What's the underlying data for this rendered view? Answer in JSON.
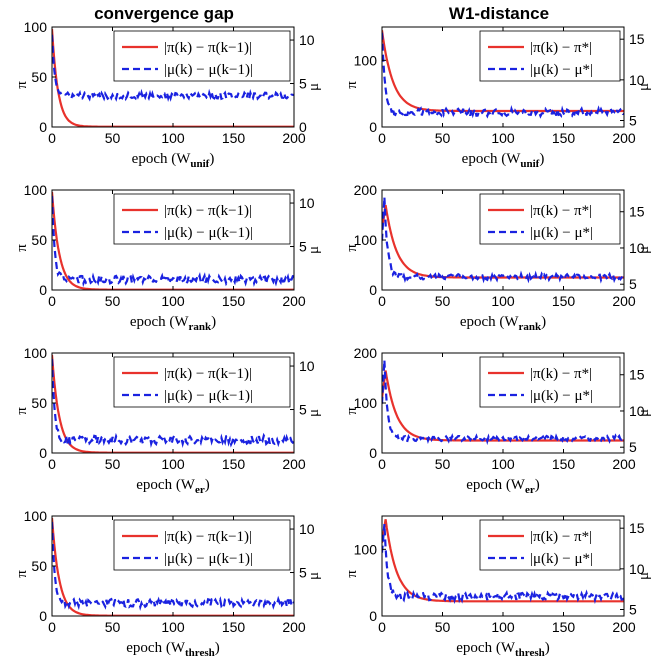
{
  "figure": {
    "column_titles": [
      "convergence gap",
      "W1-distance"
    ]
  },
  "colors": {
    "pi": "#e8322c",
    "mu": "#1a22e0"
  },
  "chart_data": [
    {
      "type": "line",
      "column": 0,
      "row": 0,
      "xlabel": "epoch (W",
      "xlabel_sub": "unif",
      "xlabel_tail": ")",
      "ylabel_left": "π",
      "ylabel_right": "μ",
      "xlim": [
        0,
        200
      ],
      "ylim_left": [
        0,
        100
      ],
      "ylim_right": [
        0,
        11.5
      ],
      "xticks": [
        0,
        50,
        100,
        150,
        200
      ],
      "yticks_left": [
        0,
        50,
        100
      ],
      "yticks_right": [
        0,
        5,
        10
      ],
      "legend": {
        "placement": "top-right",
        "pi_label": "|π(k) − π(k−1)|",
        "mu_label": "|μ(k) − μ(k−1)|"
      },
      "series": [
        {
          "name": "|π(k) − π(k−1)|",
          "axis": "left",
          "style": "solid",
          "model": "decay",
          "start": 98,
          "floor": 0.3,
          "tau": 5.0
        },
        {
          "name": "|μ(k) − μ(k−1)|",
          "axis": "right",
          "style": "dashed",
          "model": "decay_noise",
          "start": 10.6,
          "floor": 3.6,
          "tau": 2.2,
          "noise": 0.35
        }
      ]
    },
    {
      "type": "line",
      "column": 1,
      "row": 0,
      "xlabel": "epoch (W",
      "xlabel_sub": "unif",
      "xlabel_tail": ")",
      "ylabel_left": "π",
      "ylabel_right": "μ",
      "xlim": [
        0,
        200
      ],
      "ylim_left": [
        0,
        150
      ],
      "ylim_right": [
        4.2,
        16.5
      ],
      "xticks": [
        0,
        50,
        100,
        150,
        200
      ],
      "yticks_left": [
        0,
        100
      ],
      "yticks_right": [
        5,
        10,
        15
      ],
      "legend": {
        "placement": "top-right",
        "pi_label": "|π(k) − π*|",
        "mu_label": "|μ(k) − μ*|"
      },
      "series": [
        {
          "name": "|π(k) − π*|",
          "axis": "left",
          "style": "solid",
          "model": "decay",
          "start": 145,
          "floor": 24,
          "tau": 9.0
        },
        {
          "name": "|μ(k) − μ*|",
          "axis": "right",
          "style": "dashed",
          "model": "decay_noise",
          "start": 15.8,
          "floor": 6.0,
          "tau": 2.5,
          "noise": 0.45
        }
      ]
    },
    {
      "type": "line",
      "column": 0,
      "row": 1,
      "xlabel": "epoch (W",
      "xlabel_sub": "rank",
      "xlabel_tail": ")",
      "ylabel_left": "π",
      "ylabel_right": "μ",
      "xlim": [
        0,
        200
      ],
      "ylim_left": [
        0,
        100
      ],
      "ylim_right": [
        0,
        11.5
      ],
      "xticks": [
        0,
        50,
        100,
        150,
        200
      ],
      "yticks_left": [
        0,
        50,
        100
      ],
      "yticks_right": [
        5,
        10
      ],
      "legend": {
        "placement": "top-right",
        "pi_label": "|π(k) − π(k−1)|",
        "mu_label": "|μ(k) − μ(k−1)|"
      },
      "series": [
        {
          "name": "|π(k) − π(k−1)|",
          "axis": "left",
          "style": "solid",
          "model": "decay",
          "start": 98,
          "floor": 0.3,
          "tau": 6.0
        },
        {
          "name": "|μ(k) − μ(k−1)|",
          "axis": "right",
          "style": "dashed",
          "model": "decay_noise",
          "start": 10.8,
          "floor": 1.2,
          "tau": 2.2,
          "noise": 0.45
        }
      ]
    },
    {
      "type": "line",
      "column": 1,
      "row": 1,
      "xlabel": "epoch (W",
      "xlabel_sub": "rank",
      "xlabel_tail": ")",
      "ylabel_left": "π",
      "ylabel_right": "μ",
      "xlim": [
        0,
        200
      ],
      "ylim_left": [
        0,
        200
      ],
      "ylim_right": [
        4.2,
        18
      ],
      "xticks": [
        0,
        50,
        100,
        150,
        200
      ],
      "yticks_left": [
        0,
        100,
        200
      ],
      "yticks_right": [
        5,
        10,
        15
      ],
      "legend": {
        "placement": "top-right",
        "pi_label": "|π(k) − π*|",
        "mu_label": "|μ(k) − μ*|"
      },
      "series": [
        {
          "name": "|π(k) − π*|",
          "axis": "left",
          "style": "solid",
          "model": "rise_decay",
          "start": 120,
          "peak": 170,
          "peak_x": 3,
          "floor": 25,
          "tau": 9.0
        },
        {
          "name": "|μ(k) − μ*|",
          "axis": "right",
          "style": "dashed",
          "model": "rise_decay_noise",
          "start": 11,
          "peak": 17,
          "peak_x": 2,
          "floor": 6.0,
          "tau": 2.5,
          "noise": 0.4
        }
      ]
    },
    {
      "type": "line",
      "column": 0,
      "row": 2,
      "xlabel": "epoch (W",
      "xlabel_sub": "er",
      "xlabel_tail": ")",
      "ylabel_left": "π",
      "ylabel_right": "μ",
      "xlim": [
        0,
        200
      ],
      "ylim_left": [
        0,
        100
      ],
      "ylim_right": [
        0,
        11.5
      ],
      "xticks": [
        0,
        50,
        100,
        150,
        200
      ],
      "yticks_left": [
        0,
        50,
        100
      ],
      "yticks_right": [
        5,
        10
      ],
      "legend": {
        "placement": "top-right",
        "pi_label": "|π(k) − π(k−1)|",
        "mu_label": "|μ(k) − μ(k−1)|"
      },
      "series": [
        {
          "name": "|π(k) − π(k−1)|",
          "axis": "left",
          "style": "solid",
          "model": "decay",
          "start": 98,
          "floor": 0.3,
          "tau": 6.0
        },
        {
          "name": "|μ(k) − μ(k−1)|",
          "axis": "right",
          "style": "dashed",
          "model": "decay_noise",
          "start": 10.8,
          "floor": 1.5,
          "tau": 2.2,
          "noise": 0.5
        }
      ]
    },
    {
      "type": "line",
      "column": 1,
      "row": 2,
      "xlabel": "epoch (W",
      "xlabel_sub": "er",
      "xlabel_tail": ")",
      "ylabel_left": "π",
      "ylabel_right": "μ",
      "xlim": [
        0,
        200
      ],
      "ylim_left": [
        0,
        200
      ],
      "ylim_right": [
        4.2,
        18
      ],
      "xticks": [
        0,
        50,
        100,
        150,
        200
      ],
      "yticks_left": [
        0,
        100,
        200
      ],
      "yticks_right": [
        5,
        10,
        15
      ],
      "legend": {
        "placement": "top-right",
        "pi_label": "|π(k) − π*|",
        "mu_label": "|μ(k) − μ*|"
      },
      "series": [
        {
          "name": "|π(k) − π*|",
          "axis": "left",
          "style": "solid",
          "model": "rise_decay",
          "start": 110,
          "peak": 165,
          "peak_x": 3,
          "floor": 25,
          "tau": 9.0
        },
        {
          "name": "|μ(k) − μ*|",
          "axis": "right",
          "style": "dashed",
          "model": "rise_decay_noise",
          "start": 11,
          "peak": 17,
          "peak_x": 2,
          "floor": 6.2,
          "tau": 2.5,
          "noise": 0.35
        }
      ]
    },
    {
      "type": "line",
      "column": 0,
      "row": 3,
      "xlabel": "epoch (W",
      "xlabel_sub": "thresh",
      "xlabel_tail": ")",
      "ylabel_left": "π",
      "ylabel_right": "μ",
      "xlim": [
        0,
        200
      ],
      "ylim_left": [
        0,
        100
      ],
      "ylim_right": [
        0,
        11.5
      ],
      "xticks": [
        0,
        50,
        100,
        150,
        200
      ],
      "yticks_left": [
        0,
        50,
        100
      ],
      "yticks_right": [
        5,
        10
      ],
      "legend": {
        "placement": "top-right",
        "pi_label": "|π(k) − π(k−1)|",
        "mu_label": "|μ(k) − μ(k−1)|"
      },
      "series": [
        {
          "name": "|π(k) − π(k−1)|",
          "axis": "left",
          "style": "solid",
          "model": "decay",
          "start": 98,
          "floor": 0.3,
          "tau": 6.0
        },
        {
          "name": "|μ(k) − μ(k−1)|",
          "axis": "right",
          "style": "dashed",
          "model": "decay_noise",
          "start": 10.8,
          "floor": 1.5,
          "tau": 2.2,
          "noise": 0.45
        }
      ]
    },
    {
      "type": "line",
      "column": 1,
      "row": 3,
      "xlabel": "epoch (W",
      "xlabel_sub": "thresh",
      "xlabel_tail": ")",
      "ylabel_left": "π",
      "ylabel_right": "μ",
      "xlim": [
        0,
        200
      ],
      "ylim_left": [
        0,
        150
      ],
      "ylim_right": [
        4.2,
        16.5
      ],
      "xticks": [
        0,
        50,
        100,
        150,
        200
      ],
      "yticks_left": [
        0,
        100
      ],
      "yticks_right": [
        5,
        10,
        15
      ],
      "legend": {
        "placement": "top-right",
        "pi_label": "|π(k) − π*|",
        "mu_label": "|μ(k) − μ*|"
      },
      "series": [
        {
          "name": "|π(k) − π*|",
          "axis": "left",
          "style": "solid",
          "model": "rise_decay",
          "start": 110,
          "peak": 145,
          "peak_x": 3,
          "floor": 22,
          "tau": 9.0
        },
        {
          "name": "|μ(k) − μ*|",
          "axis": "right",
          "style": "dashed",
          "model": "rise_decay_noise",
          "start": 12,
          "peak": 15.5,
          "peak_x": 2,
          "floor": 6.6,
          "tau": 2.5,
          "noise": 0.45
        }
      ]
    }
  ]
}
